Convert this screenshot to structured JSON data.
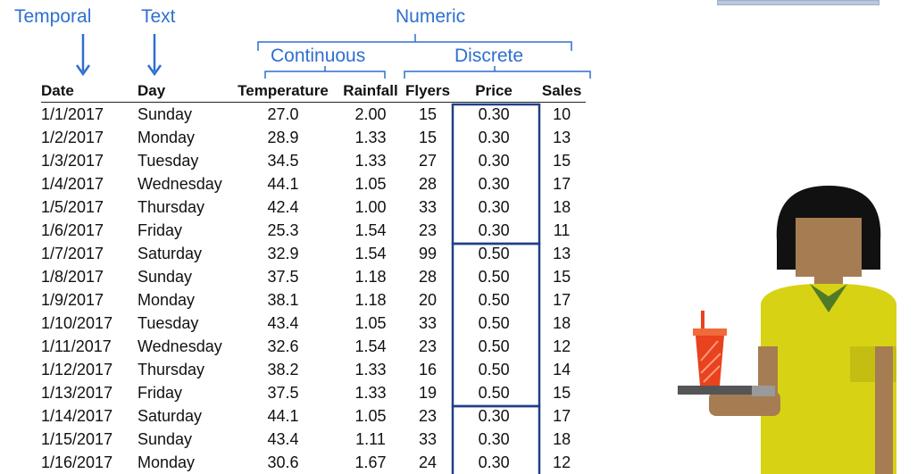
{
  "annotations": {
    "temporal": "Temporal",
    "text": "Text",
    "numeric": "Numeric",
    "continuous": "Continuous",
    "discrete": "Discrete"
  },
  "colors": {
    "annotation_blue": "#2e6fd0",
    "box_blue": "#1f3f8a",
    "shirt_yellow": "#d8d214",
    "skin": "#a67c52",
    "hair": "#111111",
    "cup_red": "#e8421e",
    "tray_gray": "#6d6d6d"
  },
  "table": {
    "headers": [
      "Date",
      "Day",
      "Temperature",
      "Rainfall",
      "Flyers",
      "Price",
      "Sales"
    ],
    "rows": [
      [
        "1/1/2017",
        "Sunday",
        "27.0",
        "2.00",
        "15",
        "0.30",
        "10"
      ],
      [
        "1/2/2017",
        "Monday",
        "28.9",
        "1.33",
        "15",
        "0.30",
        "13"
      ],
      [
        "1/3/2017",
        "Tuesday",
        "34.5",
        "1.33",
        "27",
        "0.30",
        "15"
      ],
      [
        "1/4/2017",
        "Wednesday",
        "44.1",
        "1.05",
        "28",
        "0.30",
        "17"
      ],
      [
        "1/5/2017",
        "Thursday",
        "42.4",
        "1.00",
        "33",
        "0.30",
        "18"
      ],
      [
        "1/6/2017",
        "Friday",
        "25.3",
        "1.54",
        "23",
        "0.30",
        "11"
      ],
      [
        "1/7/2017",
        "Saturday",
        "32.9",
        "1.54",
        "99",
        "0.50",
        "13"
      ],
      [
        "1/8/2017",
        "Sunday",
        "37.5",
        "1.18",
        "28",
        "0.50",
        "15"
      ],
      [
        "1/9/2017",
        "Monday",
        "38.1",
        "1.18",
        "20",
        "0.50",
        "17"
      ],
      [
        "1/10/2017",
        "Tuesday",
        "43.4",
        "1.05",
        "33",
        "0.50",
        "18"
      ],
      [
        "1/11/2017",
        "Wednesday",
        "32.6",
        "1.54",
        "23",
        "0.50",
        "12"
      ],
      [
        "1/12/2017",
        "Thursday",
        "38.2",
        "1.33",
        "16",
        "0.50",
        "14"
      ],
      [
        "1/13/2017",
        "Friday",
        "37.5",
        "1.33",
        "19",
        "0.50",
        "15"
      ],
      [
        "1/14/2017",
        "Saturday",
        "44.1",
        "1.05",
        "23",
        "0.30",
        "17"
      ],
      [
        "1/15/2017",
        "Sunday",
        "43.4",
        "1.11",
        "33",
        "0.30",
        "18"
      ],
      [
        "1/16/2017",
        "Monday",
        "30.6",
        "1.67",
        "24",
        "0.30",
        "12"
      ]
    ]
  }
}
